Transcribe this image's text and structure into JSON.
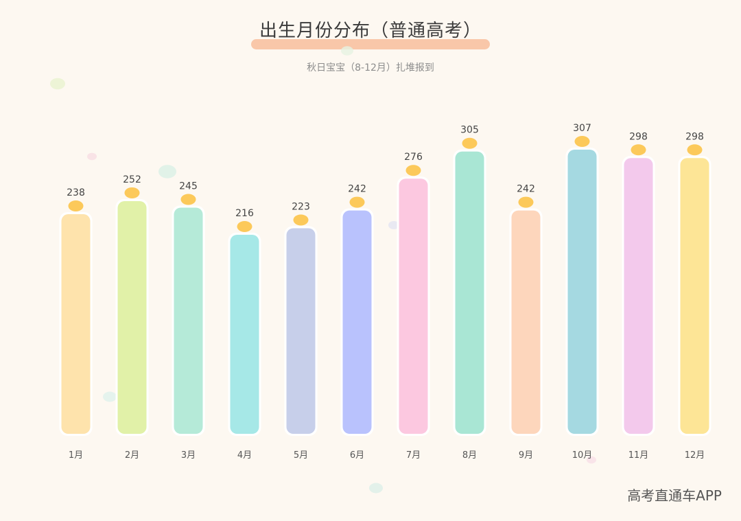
{
  "title": "出生月份分布（普通高考）",
  "subtitle": "秋日宝宝（8-12月）扎堆报到",
  "watermark": "高考直通车APP",
  "colors": {
    "background": "#fdf8f1",
    "underline": "#f9c7a9",
    "dot": "#fcc95a",
    "bars": [
      "#fee3ac",
      "#e1f1a8",
      "#b5ead8",
      "#a6e8e7",
      "#c7cfea",
      "#b9c2fd",
      "#fcc8e0",
      "#a9e6d4",
      "#fdd6bc",
      "#a5d9e1",
      "#f3c9ec",
      "#fde596"
    ]
  },
  "chart_data": {
    "type": "bar",
    "categories": [
      "1月",
      "2月",
      "3月",
      "4月",
      "5月",
      "6月",
      "7月",
      "8月",
      "9月",
      "10月",
      "11月",
      "12月"
    ],
    "values": [
      238,
      252,
      245,
      216,
      223,
      242,
      276,
      305,
      242,
      307,
      298,
      298
    ],
    "title": "出生月份分布（普通高考）",
    "subtitle": "秋日宝宝（8-12月）扎堆报到",
    "xlabel": "",
    "ylabel": "",
    "grid": false,
    "legend": "none"
  }
}
